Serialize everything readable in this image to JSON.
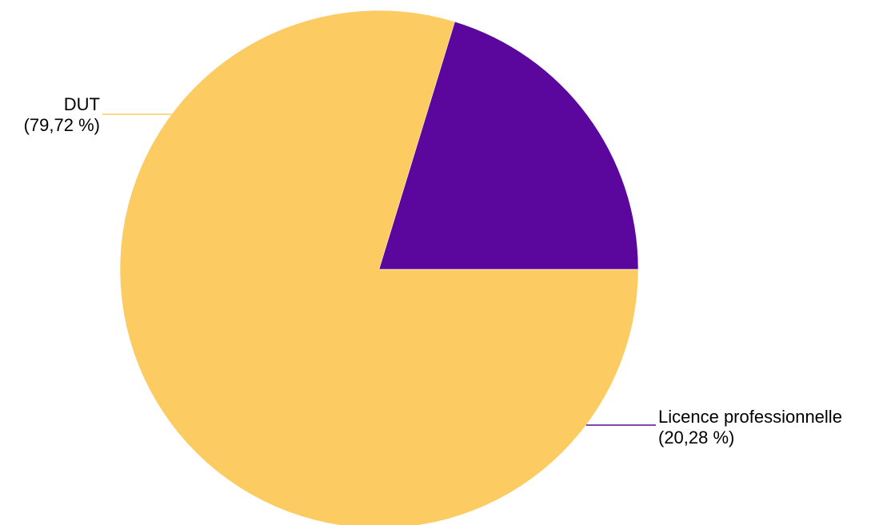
{
  "chart_data": {
    "type": "pie",
    "title": "",
    "slices": [
      {
        "name": "DUT",
        "value": 79.72,
        "label": "(79,72 %)",
        "color": "#fccb61"
      },
      {
        "name": "Licence professionnelle",
        "value": 20.28,
        "label": "(20,28 %)",
        "color": "#5b069d"
      }
    ],
    "start_angle": "3 o'clock",
    "direction": "clockwise",
    "legend": "none",
    "label_placement": "outside with leader lines"
  }
}
